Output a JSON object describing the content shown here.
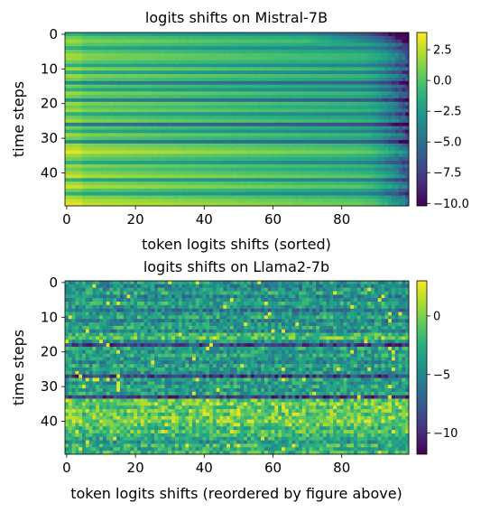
{
  "chart_data": [
    {
      "type": "heatmap",
      "title": "logits shifts on Mistral-7B",
      "xlabel": "token logits shifts (sorted)",
      "ylabel": "time steps",
      "x_ticks": [
        0,
        20,
        40,
        60,
        80
      ],
      "y_ticks": [
        0,
        10,
        20,
        30,
        40
      ],
      "xlim": [
        0,
        99
      ],
      "ylim": [
        0,
        49
      ],
      "n_rows": 50,
      "n_cols": 100,
      "colormap": "viridis",
      "colorbar": {
        "range": [
          -10.2,
          3.9
        ],
        "ticks": [
          2.5,
          0.0,
          -2.5,
          -5.0,
          -7.5,
          -10.0
        ],
        "tick_labels": [
          "2.5",
          "0.0",
          "−2.5",
          "−5.0",
          "−7.5",
          "−10.0"
        ]
      },
      "row_levels": [
        -3,
        -1,
        0,
        -1,
        -3,
        -1,
        0,
        0,
        -1,
        -3,
        0,
        -3,
        0,
        -1,
        -5,
        -1,
        -3,
        0,
        -1,
        -5,
        0,
        -1,
        0,
        -3,
        -1,
        0,
        -6,
        -1,
        -3,
        0,
        -1,
        -5,
        0,
        0.5,
        1.5,
        0,
        -1,
        -3,
        0,
        -1,
        0,
        1,
        -3,
        0,
        1,
        -1,
        -3,
        0,
        1,
        1.5
      ]
    },
    {
      "type": "heatmap",
      "title": "logits shifts on Llama2-7b",
      "xlabel": "token logits shifts (reordered by figure above)",
      "ylabel": "time steps",
      "x_ticks": [
        0,
        20,
        40,
        60,
        80
      ],
      "y_ticks": [
        0,
        10,
        20,
        30,
        40
      ],
      "xlim": [
        0,
        99
      ],
      "ylim": [
        0,
        49
      ],
      "n_rows": 50,
      "n_cols": 100,
      "colormap": "viridis",
      "colorbar": {
        "range": [
          -11.8,
          3.0
        ],
        "ticks": [
          0,
          -5,
          -10
        ],
        "tick_labels": [
          "0",
          "−5",
          "−10"
        ]
      },
      "row_levels": [
        -4,
        -5,
        -4,
        -3,
        -5,
        -4,
        -3,
        -4,
        -6,
        -4,
        -3,
        -5,
        -4,
        -3,
        -5,
        -2,
        -1,
        -4,
        -9,
        -3,
        -4,
        -3,
        -4,
        -5,
        -3,
        -4,
        -4,
        -9,
        -3,
        -4,
        -3,
        -4,
        -3,
        -9,
        -1,
        0,
        -1,
        0,
        -1,
        0,
        0,
        -1,
        -2,
        -1,
        -2,
        -3,
        -4,
        -2,
        -3,
        -2
      ]
    }
  ]
}
